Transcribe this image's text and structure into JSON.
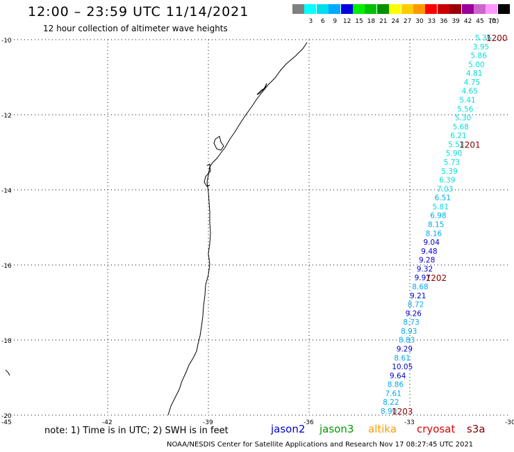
{
  "header": {
    "title": "12:00 – 23:59 UTC 11/14/2021",
    "subtitle": "12 hour collection of altimeter wave heights"
  },
  "legend": {
    "unit": "(ft)",
    "bins": [
      {
        "label": "",
        "color": "#808080"
      },
      {
        "label": "3",
        "color": "#00ffff"
      },
      {
        "label": "6",
        "color": "#00ddee"
      },
      {
        "label": "9",
        "color": "#00aaff"
      },
      {
        "label": "12",
        "color": "#0000dd"
      },
      {
        "label": "15",
        "color": "#00ee00"
      },
      {
        "label": "18",
        "color": "#00c000"
      },
      {
        "label": "21",
        "color": "#009000"
      },
      {
        "label": "24",
        "color": "#ffff00"
      },
      {
        "label": "27",
        "color": "#ffcc00"
      },
      {
        "label": "30",
        "color": "#ff9900"
      },
      {
        "label": "33",
        "color": "#ff0000"
      },
      {
        "label": "36",
        "color": "#cc0000"
      },
      {
        "label": "39",
        "color": "#990000"
      },
      {
        "label": "42",
        "color": "#990099"
      },
      {
        "label": "45",
        "color": "#cc66cc"
      },
      {
        "label": "70",
        "color": "#ff99ff"
      },
      {
        "label": "",
        "color": "#000000"
      }
    ]
  },
  "map": {
    "lat_ticks": [
      "-10",
      "-12",
      "-14",
      "-16",
      "-18",
      "-20"
    ],
    "lon_ticks": [
      "-45",
      "-42",
      "-39",
      "-36",
      "-33",
      "-30"
    ],
    "colors": {
      "cyan": "#00dddd",
      "light_blue": "#00aaee",
      "blue": "#0000cc",
      "time": "#880000"
    },
    "track": [
      {
        "v": "5.36",
        "c": "cyan"
      },
      {
        "v": "3.95",
        "c": "cyan"
      },
      {
        "v": "5.86",
        "c": "cyan"
      },
      {
        "v": "5.00",
        "c": "cyan"
      },
      {
        "v": "4.81",
        "c": "cyan"
      },
      {
        "v": "4.75",
        "c": "cyan"
      },
      {
        "v": "4.65",
        "c": "cyan"
      },
      {
        "v": "5.41",
        "c": "cyan"
      },
      {
        "v": "5.56",
        "c": "cyan"
      },
      {
        "v": "5.30",
        "c": "cyan"
      },
      {
        "v": "5.68",
        "c": "cyan"
      },
      {
        "v": "6.21",
        "c": "cyan"
      },
      {
        "v": "5.53",
        "c": "cyan"
      },
      {
        "v": "5.90",
        "c": "cyan"
      },
      {
        "v": "5.73",
        "c": "cyan"
      },
      {
        "v": "5.39",
        "c": "cyan"
      },
      {
        "v": "6.39",
        "c": "cyan"
      },
      {
        "v": "7.03",
        "c": "cyan"
      },
      {
        "v": "6.51",
        "c": "light_blue"
      },
      {
        "v": "5.81",
        "c": "cyan"
      },
      {
        "v": "6.98",
        "c": "light_blue"
      },
      {
        "v": "8.15",
        "c": "light_blue"
      },
      {
        "v": "8.16",
        "c": "light_blue"
      },
      {
        "v": "9.04",
        "c": "blue"
      },
      {
        "v": "9.48",
        "c": "blue"
      },
      {
        "v": "9.28",
        "c": "blue"
      },
      {
        "v": "9.32",
        "c": "blue"
      },
      {
        "v": "9.97",
        "c": "blue"
      },
      {
        "v": "8.68",
        "c": "light_blue"
      },
      {
        "v": "9.21",
        "c": "blue"
      },
      {
        "v": "8.72",
        "c": "light_blue"
      },
      {
        "v": "9.26",
        "c": "blue"
      },
      {
        "v": "8.73",
        "c": "light_blue"
      },
      {
        "v": "8.93",
        "c": "light_blue"
      },
      {
        "v": "8.83",
        "c": "light_blue"
      },
      {
        "v": "9.29",
        "c": "blue"
      },
      {
        "v": "8.61",
        "c": "light_blue"
      },
      {
        "v": "10.05",
        "c": "blue"
      },
      {
        "v": "9.64",
        "c": "blue"
      },
      {
        "v": "8.86",
        "c": "light_blue"
      },
      {
        "v": "7.61",
        "c": "light_blue"
      },
      {
        "v": "8.22",
        "c": "light_blue"
      },
      {
        "v": "8.90",
        "c": "light_blue"
      }
    ],
    "times": [
      {
        "label": "1200",
        "after": 0
      },
      {
        "label": "1201",
        "after": 12
      },
      {
        "label": "1202",
        "after": 27
      },
      {
        "label": "1203",
        "after": 42
      }
    ]
  },
  "footer": {
    "note": "note:  1) Time is in UTC;  2) SWH is in feet",
    "satellites": [
      {
        "name": "jason2",
        "color": "#0000cc"
      },
      {
        "name": "jason3",
        "color": "#009900"
      },
      {
        "name": "altika",
        "color": "#ff9900"
      },
      {
        "name": "cryosat",
        "color": "#dd0000"
      },
      {
        "name": "s3a",
        "color": "#880000"
      }
    ],
    "credit": "NOAA/NESDIS Center for Satellite Applications and Research    Nov 17 08:27:45 UTC 2021"
  }
}
